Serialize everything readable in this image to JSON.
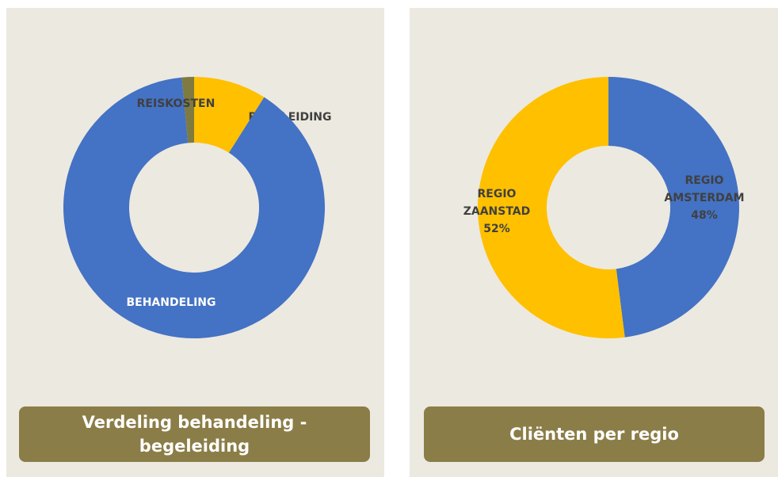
{
  "chart_data": [
    {
      "type": "donut",
      "title": "Verdeling behandeling - begeleiding",
      "categories": [
        "BEGELEIDING",
        "BEHANDELING",
        "REISKOSTEN"
      ],
      "values": [
        9,
        89.5,
        1.5
      ],
      "colors": [
        "#ffc000",
        "#4472c4",
        "#7f7a3f"
      ]
    },
    {
      "type": "donut",
      "title": "Cliënten  per regio",
      "categories": [
        "REGIO AMSTERDAM",
        "REGIO ZAANSTAD"
      ],
      "values": [
        48,
        52
      ],
      "value_labels": [
        "48%",
        "52%"
      ],
      "colors": [
        "#4472c4",
        "#ffc000"
      ]
    }
  ]
}
